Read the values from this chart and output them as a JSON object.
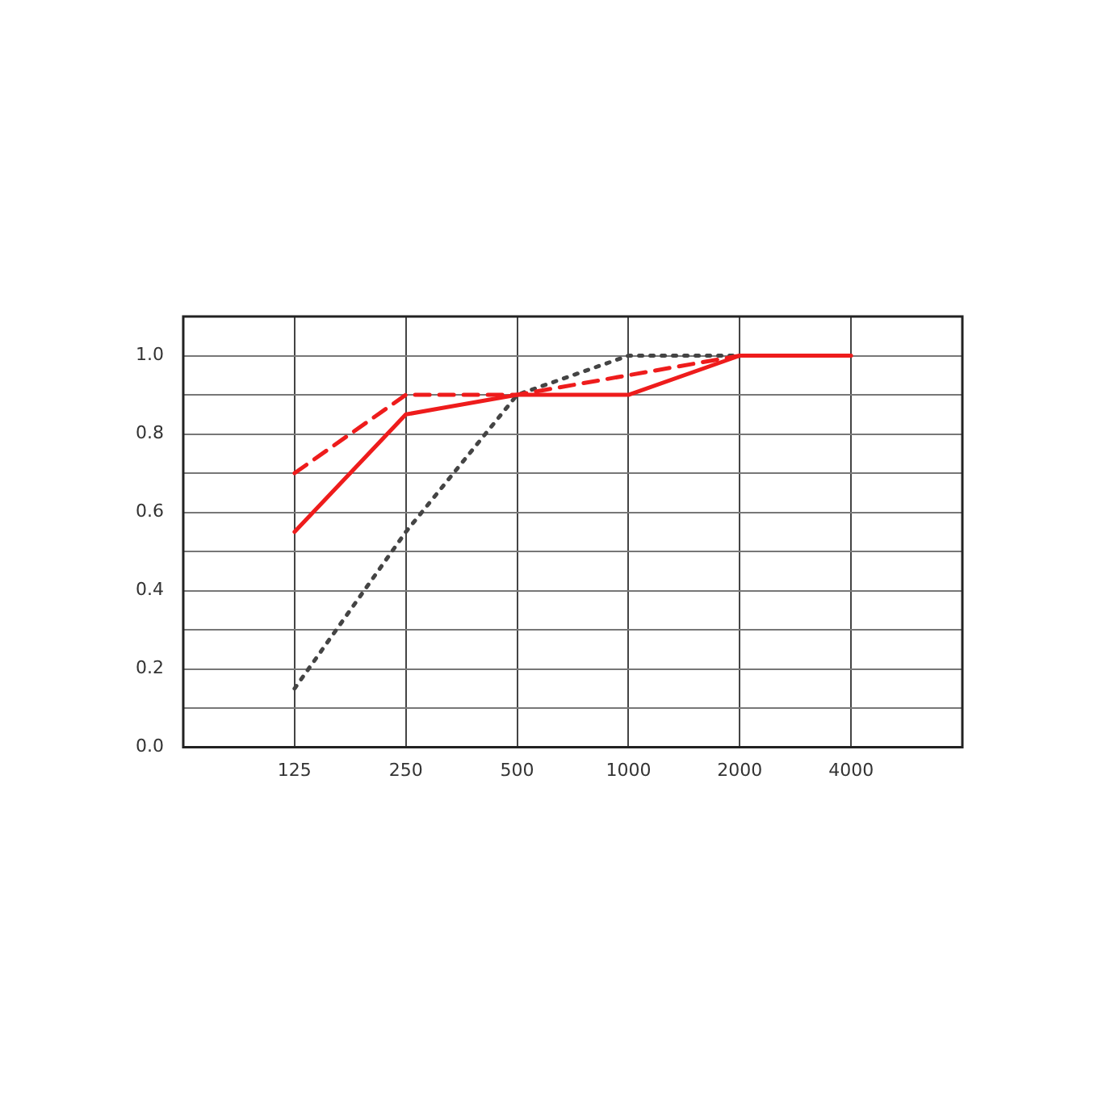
{
  "chart_data": {
    "type": "line",
    "categories": [
      null,
      "125",
      "250",
      "500",
      "1000",
      "2000",
      "4000",
      null
    ],
    "series": [
      {
        "color": "#ee1c1c",
        "line_style": "solid",
        "values": [
          null,
          0.55,
          0.85,
          0.9,
          0.9,
          1.0,
          1.0,
          null
        ]
      },
      {
        "color": "#ee1c1c",
        "line_style": "dashed",
        "values": [
          null,
          0.7,
          0.9,
          0.9,
          0.95,
          1.0,
          null,
          null
        ]
      },
      {
        "color": "#444444",
        "line_style": "dotted",
        "values": [
          null,
          0.15,
          0.55,
          0.9,
          1.0,
          1.0,
          null,
          null
        ]
      }
    ],
    "ylim": [
      0,
      1.1
    ],
    "yticks": [
      {
        "value": 0,
        "label": "0.0"
      },
      {
        "value": 0.1,
        "label": null
      },
      {
        "value": 0.2,
        "label": "0.2"
      },
      {
        "value": 0.3,
        "label": null
      },
      {
        "value": 0.4,
        "label": "0.4"
      },
      {
        "value": 0.5,
        "label": null
      },
      {
        "value": 0.6,
        "label": "0.6"
      },
      {
        "value": 0.7,
        "label": null
      },
      {
        "value": 0.8,
        "label": "0.8"
      },
      {
        "value": 0.9,
        "label": null
      },
      {
        "value": 1.0,
        "label": "1.0"
      },
      {
        "value": 1.1,
        "label": null
      }
    ],
    "grid": true,
    "legend": false,
    "marker": "none"
  }
}
